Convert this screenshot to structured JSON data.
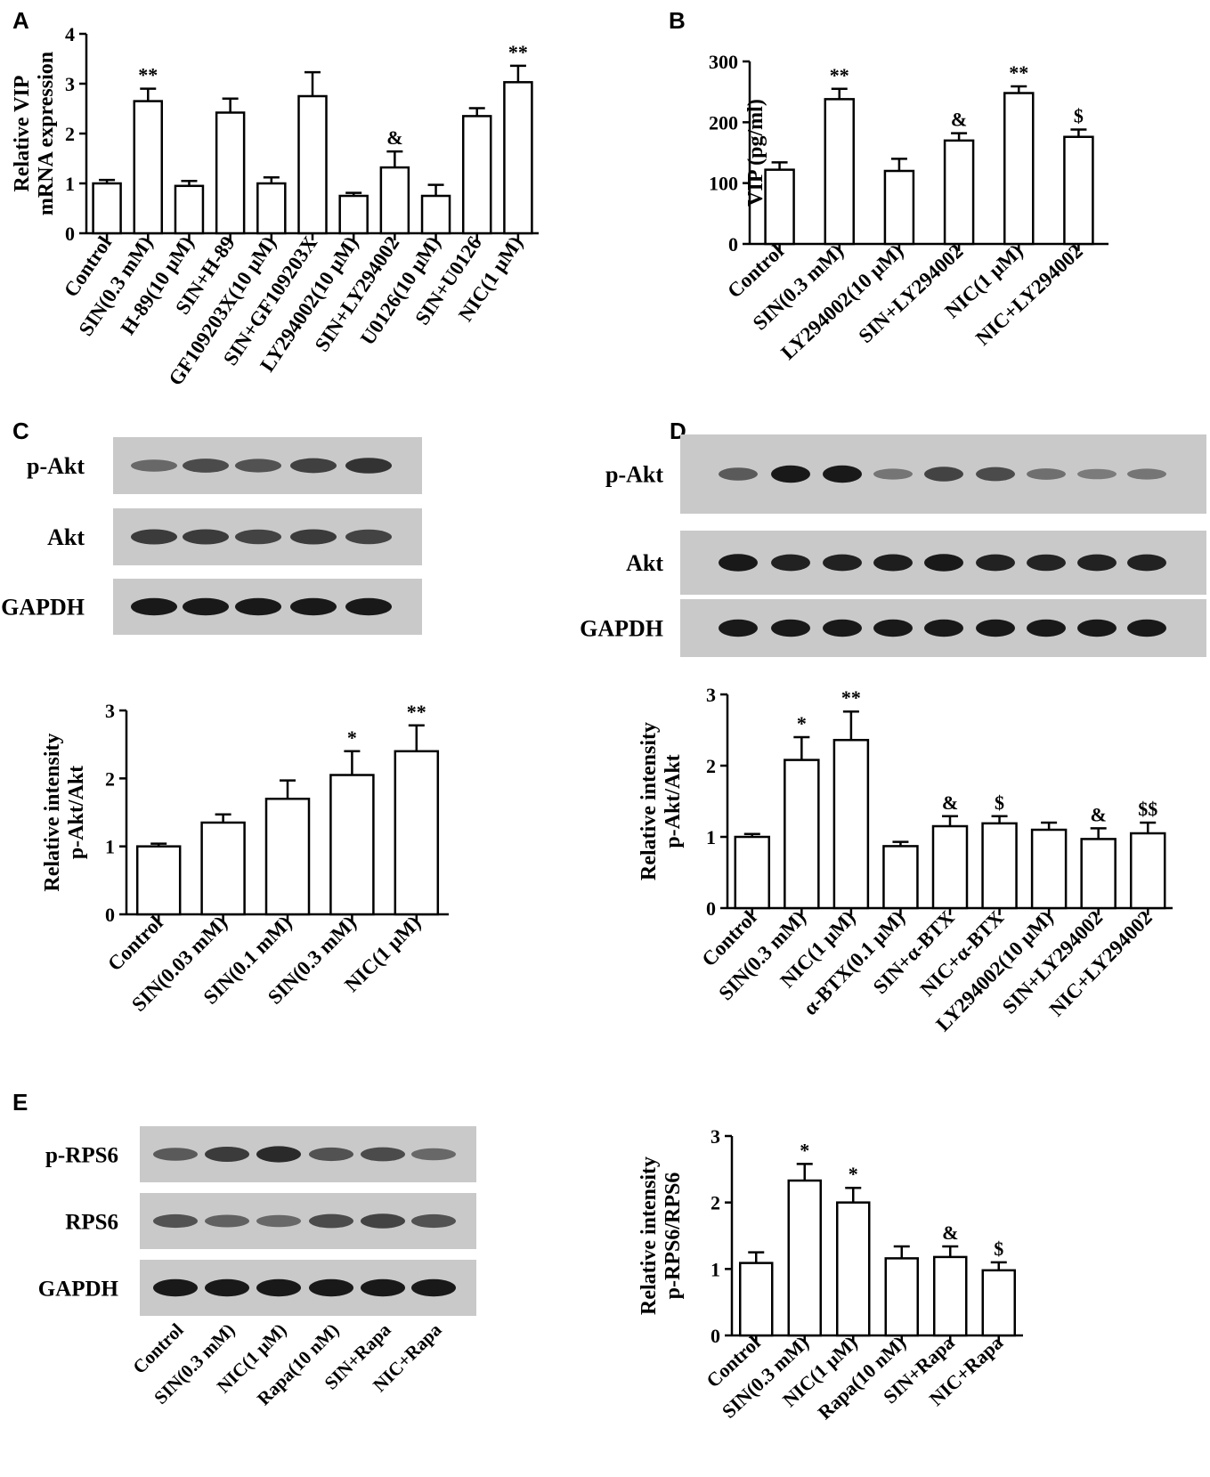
{
  "panels": [
    "A",
    "B",
    "C",
    "D",
    "E"
  ],
  "chart_data": [
    {
      "id": "A",
      "type": "bar",
      "ylabel": "Relative VIP\nmRNA expression",
      "ylim": [
        0,
        4
      ],
      "yticks": [
        0,
        1,
        2,
        3,
        4
      ],
      "categories": [
        "Control",
        "SIN(0.3 mM)",
        "H-89(10 μM)",
        "SIN+H-89",
        "GF109203X(10 μM)",
        "SIN+GF109203X",
        "LY294002(10 μM)",
        "SIN+LY294002",
        "U0126(10 μM)",
        "SIN+U0126",
        "NIC(1 μM)"
      ],
      "values": [
        1.0,
        2.65,
        0.95,
        2.42,
        1.0,
        2.75,
        0.75,
        1.32,
        0.75,
        2.35,
        3.03
      ],
      "errors": [
        0.07,
        0.25,
        0.1,
        0.28,
        0.12,
        0.48,
        0.06,
        0.32,
        0.22,
        0.16,
        0.33
      ],
      "annotations": [
        "",
        "**",
        "",
        "",
        "",
        "",
        "",
        "&",
        "",
        "",
        "**"
      ]
    },
    {
      "id": "B",
      "type": "bar",
      "ylabel": "VIP (pg/ml)",
      "ylim": [
        0,
        300
      ],
      "yticks": [
        0,
        100,
        200,
        300
      ],
      "categories": [
        "Control",
        "SIN(0.3 mM)",
        "LY294002(10 μM)",
        "SIN+LY294002",
        "NIC(1 μM)",
        "NIC+LY294002"
      ],
      "values": [
        122,
        238,
        120,
        170,
        248,
        176
      ],
      "errors": [
        12,
        17,
        20,
        12,
        11,
        12
      ],
      "annotations": [
        "",
        "**",
        "",
        "&",
        "**",
        "$"
      ]
    },
    {
      "id": "C",
      "type": "bar",
      "ylabel": "Relative intensity\np-Akt/Akt",
      "ylim": [
        0,
        3
      ],
      "yticks": [
        0,
        1,
        2,
        3
      ],
      "categories": [
        "Control",
        "SIN(0.03 mM)",
        "SIN(0.1 mM)",
        "SIN(0.3 mM)",
        "NIC(1 μM)"
      ],
      "values": [
        1.0,
        1.35,
        1.7,
        2.05,
        2.4
      ],
      "errors": [
        0.04,
        0.12,
        0.27,
        0.35,
        0.38
      ],
      "annotations": [
        "",
        "",
        "",
        "*",
        "**"
      ]
    },
    {
      "id": "D",
      "type": "bar",
      "ylabel": "Relative intensity\np-Akt/Akt",
      "ylim": [
        0,
        3
      ],
      "yticks": [
        0,
        1,
        2,
        3
      ],
      "categories": [
        "Control",
        "SIN(0.3 mM)",
        "NIC(1 μM)",
        "α-BTX(0.1 μM)",
        "SIN+α-BTX",
        "NIC+α-BTX",
        "LY294002(10 μM)",
        "SIN+LY294002",
        "NIC+LY294002"
      ],
      "values": [
        1.0,
        2.08,
        2.36,
        0.87,
        1.15,
        1.19,
        1.1,
        0.97,
        1.05
      ],
      "errors": [
        0.04,
        0.32,
        0.4,
        0.06,
        0.14,
        0.1,
        0.1,
        0.15,
        0.15
      ],
      "annotations": [
        "",
        "*",
        "**",
        "",
        "&",
        "$",
        "",
        "&",
        "$$"
      ]
    },
    {
      "id": "E",
      "type": "bar",
      "ylabel": "Relative intensity\np-RPS6/RPS6",
      "ylim": [
        0,
        3
      ],
      "yticks": [
        0,
        1,
        2,
        3
      ],
      "categories": [
        "Control",
        "SIN(0.3 mM)",
        "NIC(1 μM)",
        "Rapa(10 nM)",
        "SIN+Rapa",
        "NIC+Rapa"
      ],
      "values": [
        1.09,
        2.33,
        2.0,
        1.16,
        1.18,
        0.98
      ],
      "errors": [
        0.16,
        0.25,
        0.22,
        0.18,
        0.16,
        0.12
      ],
      "annotations": [
        "",
        "*",
        "*",
        "",
        "&",
        "$"
      ]
    }
  ],
  "blots": {
    "C": {
      "labels": [
        "p-Akt",
        "Akt",
        "GAPDH"
      ],
      "intensity": [
        [
          0.45,
          0.65,
          0.6,
          0.72,
          0.8
        ],
        [
          0.75,
          0.75,
          0.7,
          0.75,
          0.7
        ],
        [
          0.95,
          0.95,
          0.95,
          0.95,
          0.95
        ]
      ]
    },
    "D": {
      "labels": [
        "p-Akt",
        "Akt",
        "GAPDH"
      ],
      "intensity": [
        [
          0.55,
          0.95,
          0.95,
          0.35,
          0.7,
          0.65,
          0.4,
          0.3,
          0.35
        ],
        [
          0.95,
          0.9,
          0.9,
          0.92,
          0.95,
          0.9,
          0.88,
          0.9,
          0.9
        ],
        [
          0.95,
          0.95,
          0.95,
          0.95,
          0.95,
          0.95,
          0.95,
          0.95,
          0.95
        ]
      ]
    },
    "E": {
      "labels": [
        "p-RPS6",
        "RPS6",
        "GAPDH"
      ],
      "categories": [
        "Control",
        "SIN(0.3 mM)",
        "NIC(1 μM)",
        "Rapa(10 nM)",
        "SIN+Rapa",
        "NIC+Rapa"
      ],
      "intensity": [
        [
          0.55,
          0.75,
          0.85,
          0.6,
          0.65,
          0.45
        ],
        [
          0.6,
          0.5,
          0.45,
          0.65,
          0.7,
          0.6
        ],
        [
          0.95,
          0.95,
          0.95,
          0.95,
          0.95,
          0.95
        ]
      ]
    }
  }
}
